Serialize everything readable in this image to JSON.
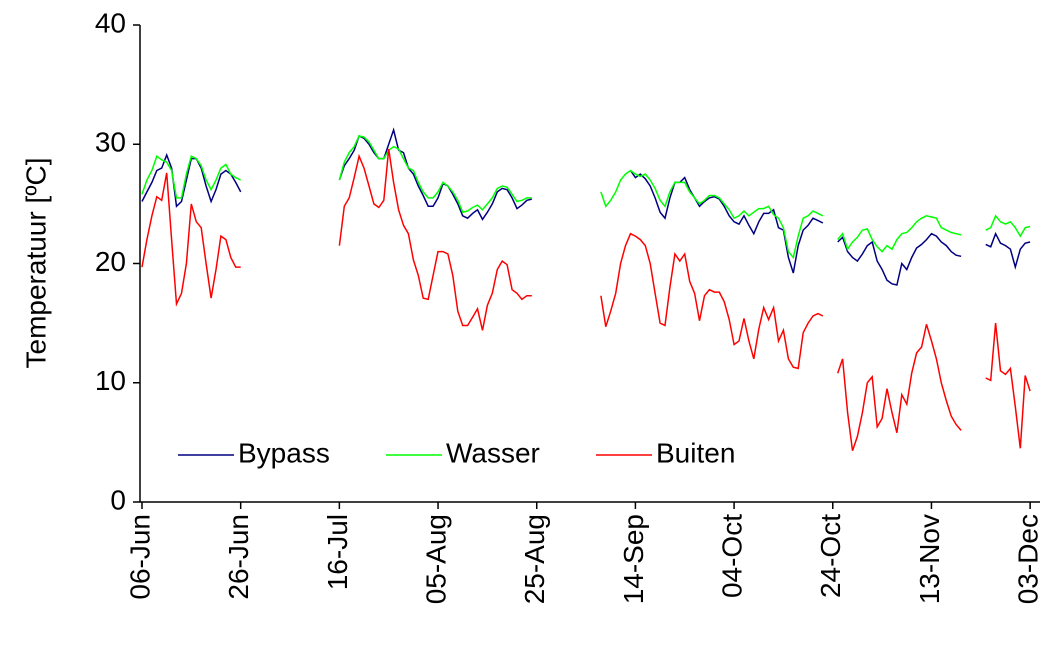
{
  "chart_data": {
    "type": "line",
    "y_label": "Temperatuur [ºC]",
    "x": [
      "06-Jun",
      "07-Jun",
      "08-Jun",
      "09-Jun",
      "10-Jun",
      "11-Jun",
      "12-Jun",
      "13-Jun",
      "14-Jun",
      "15-Jun",
      "16-Jun",
      "17-Jun",
      "18-Jun",
      "19-Jun",
      "20-Jun",
      "21-Jun",
      "22-Jun",
      "23-Jun",
      "24-Jun",
      "25-Jun",
      "26-Jun",
      "27-Jun",
      "16-Jul",
      "17-Jul",
      "18-Jul",
      "19-Jul",
      "20-Jul",
      "21-Jul",
      "22-Jul",
      "23-Jul",
      "24-Jul",
      "25-Jul",
      "26-Jul",
      "27-Jul",
      "28-Jul",
      "29-Jul",
      "30-Jul",
      "31-Jul",
      "01-Aug",
      "02-Aug",
      "03-Aug",
      "04-Aug",
      "05-Aug",
      "06-Aug",
      "07-Aug",
      "08-Aug",
      "09-Aug",
      "10-Aug",
      "11-Aug",
      "12-Aug",
      "13-Aug",
      "14-Aug",
      "15-Aug",
      "16-Aug",
      "17-Aug",
      "18-Aug",
      "19-Aug",
      "20-Aug",
      "21-Aug",
      "22-Aug",
      "23-Aug",
      "24-Aug",
      "25-Aug",
      "07-Sep",
      "08-Sep",
      "09-Sep",
      "10-Sep",
      "11-Sep",
      "12-Sep",
      "13-Sep",
      "14-Sep",
      "15-Sep",
      "16-Sep",
      "17-Sep",
      "18-Sep",
      "19-Sep",
      "20-Sep",
      "21-Sep",
      "22-Sep",
      "23-Sep",
      "24-Sep",
      "25-Sep",
      "26-Sep",
      "27-Sep",
      "28-Sep",
      "29-Sep",
      "30-Sep",
      "01-Oct",
      "02-Oct",
      "03-Oct",
      "04-Oct",
      "05-Oct",
      "06-Oct",
      "07-Oct",
      "08-Oct",
      "09-Oct",
      "10-Oct",
      "11-Oct",
      "12-Oct",
      "13-Oct",
      "14-Oct",
      "15-Oct",
      "16-Oct",
      "17-Oct",
      "18-Oct",
      "19-Oct",
      "20-Oct",
      "21-Oct",
      "22-Oct",
      "23-Oct",
      "25-Oct",
      "26-Oct",
      "27-Oct",
      "28-Oct",
      "29-Oct",
      "30-Oct",
      "31-Oct",
      "01-Nov",
      "02-Nov",
      "03-Nov",
      "04-Nov",
      "05-Nov",
      "06-Nov",
      "07-Nov",
      "08-Nov",
      "09-Nov",
      "10-Nov",
      "11-Nov",
      "12-Nov",
      "13-Nov",
      "14-Nov",
      "15-Nov",
      "16-Nov",
      "17-Nov",
      "18-Nov",
      "19-Nov",
      "20-Nov",
      "24-Nov",
      "25-Nov",
      "26-Nov",
      "27-Nov",
      "28-Nov",
      "29-Nov",
      "30-Nov",
      "01-Dec",
      "02-Dec",
      "03-Dec"
    ],
    "series": [
      {
        "name": "Bypass",
        "color": "#000080",
        "values": [
          25.2,
          26,
          26.8,
          27.8,
          28,
          29.1,
          28,
          24.8,
          25.2,
          27,
          28.8,
          28.8,
          28,
          26.5,
          25.2,
          26.2,
          27.5,
          27.8,
          27.5,
          26.8,
          26.0,
          null,
          27,
          28.2,
          28.8,
          29.5,
          30.7,
          30.5,
          30,
          29.3,
          28.8,
          28.8,
          30,
          31.2,
          29.5,
          29.3,
          28,
          27.5,
          26.5,
          25.7,
          24.8,
          24.8,
          25.5,
          26.7,
          26.5,
          25.8,
          25,
          24,
          23.8,
          24.2,
          24.5,
          23.7,
          24.3,
          25,
          26,
          26.3,
          26.2,
          25.5,
          24.6,
          24.9,
          25.3,
          25.4,
          null,
          null,
          null,
          null,
          null,
          null,
          null,
          27.8,
          27.2,
          27.5,
          27.1,
          26.5,
          25.5,
          24.3,
          23.8,
          25.5,
          26.8,
          26.8,
          27.2,
          26.2,
          25.5,
          24.8,
          25.2,
          25.5,
          25.6,
          25.4,
          24.8,
          24,
          23.5,
          23.3,
          24,
          23.2,
          22.5,
          23.5,
          24.2,
          24.2,
          24.5,
          23,
          22.8,
          20.5,
          19.2,
          21.5,
          22.8,
          23.2,
          23.8,
          23.6,
          23.4,
          null,
          21.8,
          22.2,
          21,
          20.5,
          20.2,
          20.8,
          21.5,
          21.8,
          20.2,
          19.5,
          18.6,
          18.3,
          18.2,
          20,
          19.5,
          20.5,
          21.3,
          21.6,
          22,
          22.5,
          22.3,
          21.8,
          21.5,
          21,
          20.7,
          20.6,
          null,
          21.6,
          21.4,
          22.5,
          21.7,
          21.5,
          21.2,
          19.7,
          21.2,
          21.7,
          21.8
        ]
      },
      {
        "name": "Wasser",
        "color": "#00ff00",
        "values": [
          25.8,
          27,
          27.8,
          29,
          28.7,
          28.5,
          27.8,
          25.5,
          25.5,
          27.5,
          29,
          28.8,
          28.2,
          27,
          26.2,
          27,
          28,
          28.3,
          27.5,
          27.2,
          27.0,
          null,
          27,
          28.5,
          29.3,
          29.8,
          30.7,
          30.6,
          30.2,
          29.5,
          28.8,
          28.8,
          29.5,
          29.8,
          29.6,
          28.8,
          28,
          27.8,
          26.8,
          26,
          25.5,
          25.5,
          26,
          26.8,
          26.5,
          26,
          25.3,
          24.3,
          24.4,
          24.7,
          24.9,
          24.5,
          25,
          25.5,
          26.3,
          26.5,
          26.4,
          25.8,
          25.2,
          25.3,
          25.5,
          25.5,
          null,
          26,
          24.8,
          25.3,
          26,
          27,
          27.5,
          27.8,
          27.5,
          27.3,
          27.5,
          27,
          26.3,
          25.3,
          24.8,
          26,
          26.8,
          26.8,
          26.8,
          26,
          25.5,
          25,
          25.3,
          25.7,
          25.7,
          25.5,
          25,
          24.5,
          23.8,
          24,
          24.4,
          24,
          24.3,
          24.6,
          24.6,
          24.8,
          24.1,
          23.8,
          23,
          21,
          20.5,
          22.3,
          23.8,
          24,
          24.4,
          24.2,
          24.0,
          null,
          22,
          22.5,
          21.2,
          21.8,
          22.2,
          22.8,
          22.9,
          22,
          21.4,
          21,
          21.5,
          21.2,
          22,
          22.5,
          22.6,
          23,
          23.5,
          23.8,
          24,
          23.9,
          23.8,
          23,
          22.8,
          22.6,
          22.5,
          22.4,
          null,
          22.8,
          23,
          24,
          23.5,
          23.3,
          23.5,
          23,
          22.3,
          23,
          23.1
        ]
      },
      {
        "name": "Buiten",
        "color": "#ff0000",
        "values": [
          19.7,
          22,
          24,
          25.6,
          25.3,
          27.6,
          22,
          16.6,
          17.5,
          20,
          25,
          23.5,
          23,
          20,
          17.1,
          19.5,
          22.3,
          22,
          20.5,
          19.7,
          19.7,
          null,
          21.5,
          24.8,
          25.5,
          27.2,
          29,
          28,
          26.5,
          25,
          24.7,
          25.3,
          29.6,
          26.8,
          24.5,
          23.2,
          22.5,
          20.3,
          19,
          17.1,
          17,
          19,
          21,
          21,
          20.8,
          19,
          16,
          14.8,
          14.8,
          15.5,
          16.2,
          14.4,
          16.5,
          17.5,
          19.5,
          20.2,
          19.9,
          17.8,
          17.5,
          17,
          17.3,
          17.3,
          null,
          17.3,
          14.7,
          16,
          17.5,
          20,
          21.5,
          22.5,
          22.3,
          22,
          21.5,
          20,
          17.5,
          15,
          14.8,
          18,
          20.8,
          20.2,
          20.8,
          18.5,
          17.5,
          15.2,
          17.3,
          17.8,
          17.6,
          17.6,
          16.8,
          15.3,
          13.2,
          13.5,
          15.4,
          13.5,
          12,
          14.5,
          16.3,
          15.3,
          16.3,
          13.5,
          14.4,
          12,
          11.3,
          11.2,
          14.2,
          15,
          15.6,
          15.8,
          15.6,
          null,
          10.8,
          12,
          7.5,
          4.3,
          5.5,
          7.5,
          10,
          10.5,
          6.3,
          7,
          9.5,
          7.5,
          5.8,
          9,
          8.2,
          10.8,
          12.5,
          13,
          14.9,
          13.5,
          12,
          10,
          8.5,
          7.2,
          6.5,
          6.0,
          null,
          10.4,
          10.2,
          15,
          11,
          10.7,
          11.2,
          8,
          4.5,
          10.6,
          9.3
        ]
      }
    ],
    "xlim": [
      "06-Jun",
      "05-Dec"
    ],
    "xticks": [
      "06-Jun",
      "26-Jun",
      "16-Jul",
      "05-Aug",
      "25-Aug",
      "14-Sep",
      "04-Oct",
      "24-Oct",
      "13-Nov",
      "03-Dec"
    ],
    "ylim": [
      0,
      40
    ],
    "yticks": [
      0,
      10,
      20,
      30,
      40
    ],
    "legend": "lower left"
  }
}
